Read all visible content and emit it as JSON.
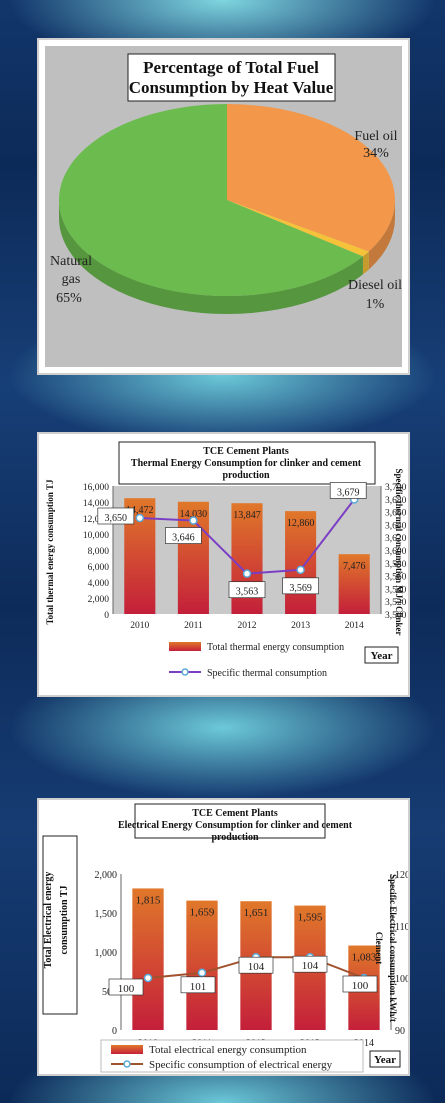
{
  "chart_data": [
    {
      "type": "pie",
      "title": "Percentage of Total Fuel Consumption  by Heat Value",
      "title_lines": [
        "Percentage of Total Fuel",
        "Consumption  by Heat Value"
      ],
      "slices": [
        {
          "name": "Fuel oil",
          "value": 34,
          "label": "34%",
          "color": "#f3974a"
        },
        {
          "name": "Diesel oil",
          "value": 1,
          "label": "1%",
          "color": "#f6c23a"
        },
        {
          "name": "Natural gas",
          "name_lines": [
            "Natural",
            "gas"
          ],
          "value": 65,
          "label": "65%",
          "color": "#6cbb4e"
        }
      ],
      "background": "#bfbfbf"
    },
    {
      "type": "bar",
      "title_lines": [
        "TCE Cement Plants",
        "Thermal Energy Consumption for clinker and cement",
        "production"
      ],
      "categories": [
        "2010",
        "2011",
        "2012",
        "2013",
        "2014"
      ],
      "series": [
        {
          "name": "Total thermal energy consumption",
          "values": [
            14472,
            14030,
            13847,
            12860,
            7476
          ],
          "labels": [
            "14,472",
            "14,030",
            "13,847",
            "12,860",
            "7,476"
          ],
          "axis": "left"
        },
        {
          "name": "Specific thermal consumption",
          "values": [
            3650,
            3646,
            3563,
            3569,
            3679
          ],
          "labels": [
            "3,650",
            "3,646",
            "3,563",
            "3,569",
            "3,679"
          ],
          "axis": "right",
          "type": "line"
        }
      ],
      "ylabel": "Total thermal energy consumption TJ",
      "y2label": "Specific thermal consumption MJ/t Clinker",
      "xlabel": "Year",
      "ylim": [
        0,
        16000
      ],
      "yticks": [
        "0",
        "2,000",
        "4,000",
        "6,000",
        "8,000",
        "10,000",
        "12,000",
        "14,000",
        "16,000"
      ],
      "y2lim": [
        3500,
        3700
      ],
      "y2ticks": [
        "3,500",
        "3,520",
        "3,540",
        "3,560",
        "3,580",
        "3,600",
        "3,620",
        "3,640",
        "3,660",
        "3,680",
        "3,700"
      ],
      "bar_colors": [
        "#e0782a",
        "#c41f3a"
      ],
      "line_color": "#7a3ec4"
    },
    {
      "type": "bar",
      "title_lines": [
        "TCE Cement Plants",
        "Electrical Energy Consumption for clinker and cement",
        "production"
      ],
      "categories": [
        "2010",
        "2011",
        "2012",
        "2013",
        "2014"
      ],
      "series": [
        {
          "name": "Total electrical energy consumption",
          "values": [
            1815,
            1659,
            1651,
            1595,
            1083
          ],
          "labels": [
            "1,815",
            "1,659",
            "1,651",
            "1,595",
            "1,083"
          ],
          "axis": "left"
        },
        {
          "name": "Specific consumption of electrical energy",
          "values": [
            100,
            101,
            104,
            104,
            100
          ],
          "labels": [
            "100",
            "101",
            "104",
            "104",
            "100"
          ],
          "axis": "right",
          "type": "line"
        }
      ],
      "ylabel_lines": [
        "Total Electrical energy",
        "consumption TJ"
      ],
      "y2label_lines": [
        "Specific Electrical consumption kWh/t",
        "Clement"
      ],
      "xlabel": "Year",
      "ylim": [
        0,
        2000
      ],
      "yticks": [
        "0",
        "500",
        "1,000",
        "1,500",
        "2,000"
      ],
      "y2lim": [
        90,
        120
      ],
      "y2ticks": [
        "90",
        "100",
        "110",
        "120"
      ],
      "bar_colors": [
        "#d7c928",
        "#e0782a"
      ],
      "line_color": "#a0522d"
    }
  ]
}
